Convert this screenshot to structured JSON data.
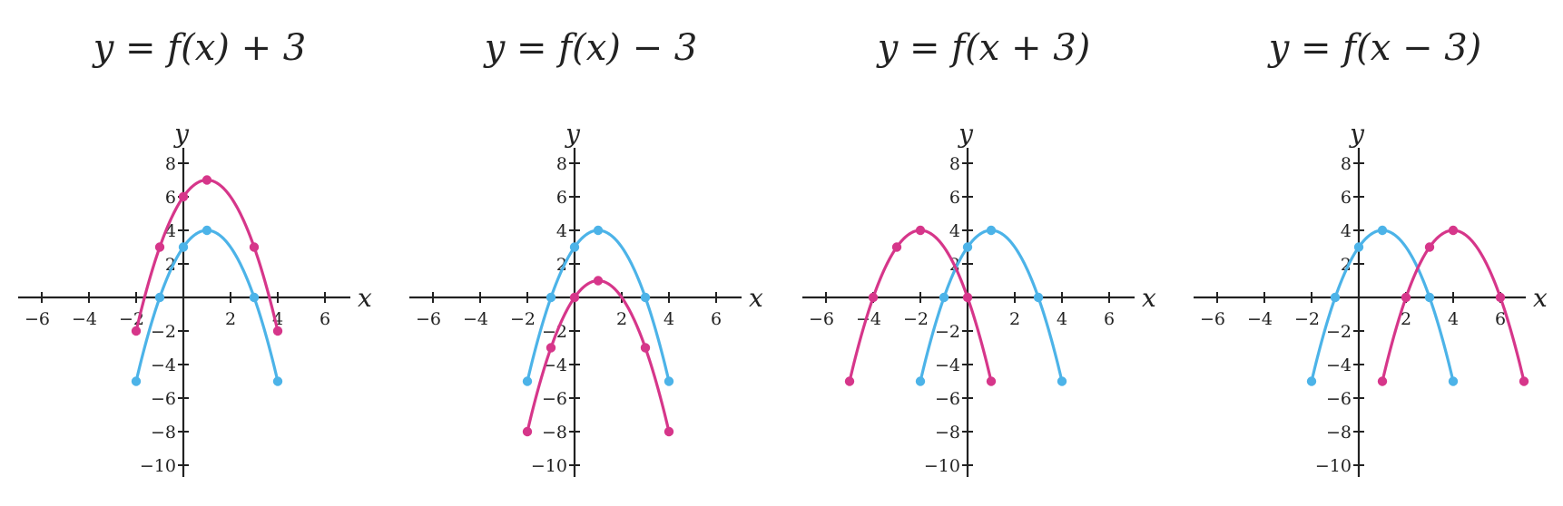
{
  "colors": {
    "base": "#4cb3e8",
    "shifted": "#d6368a",
    "axis": "#222222"
  },
  "chart_data": [
    {
      "type": "line",
      "title": "y = f(x) + 3",
      "xlabel": "x",
      "ylabel": "y",
      "xlim": [
        -7,
        7
      ],
      "ylim": [
        -10.5,
        8.5
      ],
      "x_ticks": [
        -6,
        -4,
        -2,
        2,
        4,
        6
      ],
      "y_ticks": [
        -10,
        -8,
        -6,
        -4,
        -2,
        2,
        4,
        6,
        8
      ],
      "grid": false,
      "series": [
        {
          "role": "base",
          "points": [
            [
              -2,
              -5
            ],
            [
              -1,
              0
            ],
            [
              0,
              3
            ],
            [
              1,
              4
            ],
            [
              3,
              0
            ],
            [
              4,
              -5
            ]
          ]
        },
        {
          "role": "shifted",
          "points": [
            [
              -2,
              -2
            ],
            [
              -1,
              3
            ],
            [
              0,
              6
            ],
            [
              1,
              7
            ],
            [
              3,
              3
            ],
            [
              4,
              -2
            ]
          ]
        }
      ]
    },
    {
      "type": "line",
      "title": "y = f(x) − 3",
      "xlabel": "x",
      "ylabel": "y",
      "xlim": [
        -7,
        7
      ],
      "ylim": [
        -10.5,
        8.5
      ],
      "x_ticks": [
        -6,
        -4,
        -2,
        2,
        4,
        6
      ],
      "y_ticks": [
        -10,
        -8,
        -6,
        -4,
        -2,
        2,
        4,
        6,
        8
      ],
      "grid": false,
      "series": [
        {
          "role": "base",
          "points": [
            [
              -2,
              -5
            ],
            [
              -1,
              0
            ],
            [
              0,
              3
            ],
            [
              1,
              4
            ],
            [
              3,
              0
            ],
            [
              4,
              -5
            ]
          ]
        },
        {
          "role": "shifted",
          "points": [
            [
              -2,
              -8
            ],
            [
              -1,
              -3
            ],
            [
              0,
              0
            ],
            [
              1,
              1
            ],
            [
              3,
              -3
            ],
            [
              4,
              -8
            ]
          ]
        }
      ]
    },
    {
      "type": "line",
      "title": "y = f(x + 3)",
      "xlabel": "x",
      "ylabel": "y",
      "xlim": [
        -7,
        7
      ],
      "ylim": [
        -10.5,
        8.5
      ],
      "x_ticks": [
        -6,
        -4,
        -2,
        2,
        4,
        6
      ],
      "y_ticks": [
        -10,
        -8,
        -6,
        -4,
        -2,
        2,
        4,
        6,
        8
      ],
      "grid": false,
      "series": [
        {
          "role": "base",
          "points": [
            [
              -2,
              -5
            ],
            [
              -1,
              0
            ],
            [
              0,
              3
            ],
            [
              1,
              4
            ],
            [
              3,
              0
            ],
            [
              4,
              -5
            ]
          ]
        },
        {
          "role": "shifted",
          "points": [
            [
              -5,
              -5
            ],
            [
              -4,
              0
            ],
            [
              -3,
              3
            ],
            [
              -2,
              4
            ],
            [
              0,
              0
            ],
            [
              1,
              -5
            ]
          ]
        }
      ]
    },
    {
      "type": "line",
      "title": "y = f(x − 3)",
      "xlabel": "x",
      "ylabel": "y",
      "xlim": [
        -7,
        7
      ],
      "ylim": [
        -10.5,
        8.5
      ],
      "x_ticks": [
        -6,
        -4,
        -2,
        2,
        4,
        6
      ],
      "y_ticks": [
        -10,
        -8,
        -6,
        -4,
        -2,
        2,
        4,
        6,
        8
      ],
      "grid": false,
      "series": [
        {
          "role": "base",
          "points": [
            [
              -2,
              -5
            ],
            [
              -1,
              0
            ],
            [
              0,
              3
            ],
            [
              1,
              4
            ],
            [
              3,
              0
            ],
            [
              4,
              -5
            ]
          ]
        },
        {
          "role": "shifted",
          "points": [
            [
              1,
              -5
            ],
            [
              2,
              0
            ],
            [
              3,
              3
            ],
            [
              4,
              4
            ],
            [
              6,
              0
            ],
            [
              7,
              -5
            ]
          ]
        }
      ]
    }
  ]
}
